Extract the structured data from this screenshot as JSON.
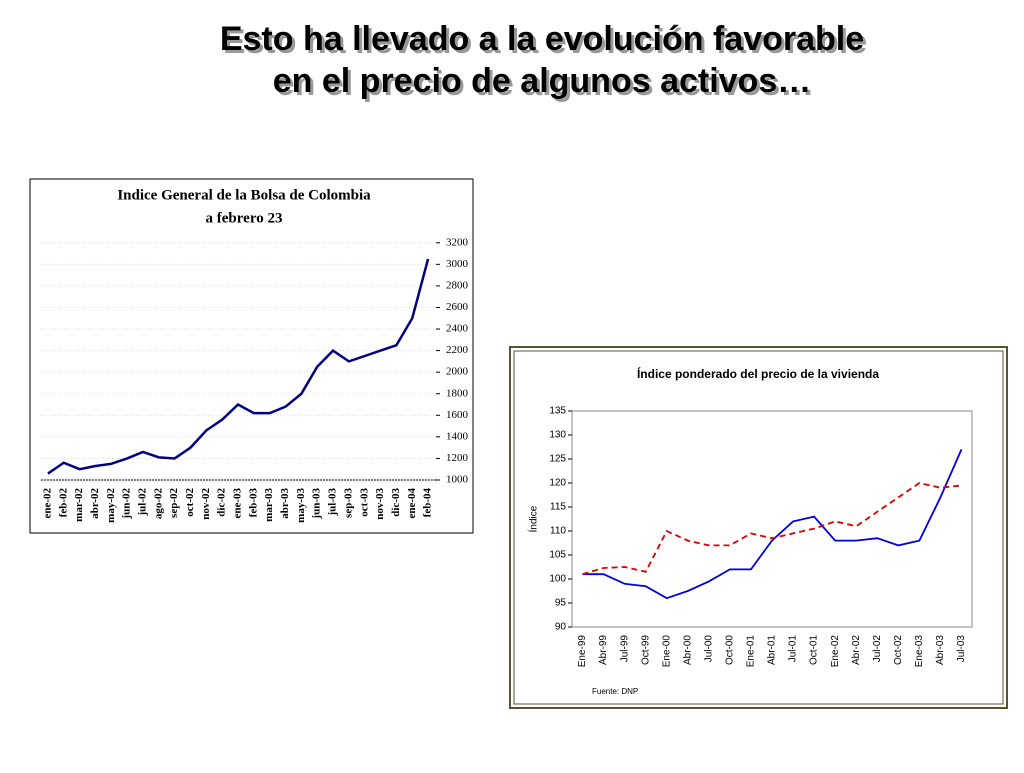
{
  "title": [
    "Esto ha llevado a la evolución favorable",
    "en el precio de algunos activos…"
  ],
  "chart_data": [
    {
      "type": "line",
      "title": "Indice General de la Bolsa de Colombia",
      "subtitle": "a febrero 23",
      "categories": [
        "ene-02",
        "feb-02",
        "mar-02",
        "abr-02",
        "may-02",
        "jun-02",
        "jul-02",
        "ago-02",
        "sep-02",
        "oct-02",
        "nov-02",
        "dic-02",
        "ene-03",
        "feb-03",
        "mar-03",
        "abr-03",
        "may-03",
        "jun-03",
        "jul-03",
        "sep-03",
        "oct-03",
        "nov-03",
        "dic-03",
        "ene-04",
        "feb-04"
      ],
      "series": [
        {
          "color": "#000080",
          "values": [
            1060,
            1160,
            1100,
            1130,
            1150,
            1200,
            1260,
            1210,
            1200,
            1300,
            1460,
            1560,
            1700,
            1620,
            1620,
            1680,
            1800,
            2050,
            2200,
            2100,
            2150,
            2200,
            2250,
            2500,
            3050
          ]
        }
      ],
      "ylim": [
        1000,
        3300
      ],
      "yticks": [
        1000,
        1200,
        1400,
        1600,
        1800,
        2000,
        2200,
        2400,
        2600,
        2800,
        3000,
        3200
      ],
      "grid": true,
      "y_axis_side": "right"
    },
    {
      "type": "line",
      "title": "Índice ponderado del precio de la vivienda",
      "y_label": "Índice",
      "source": "Fuente: DNP",
      "categories": [
        "Ene-99",
        "Abr-99",
        "Jul-99",
        "Oct-99",
        "Ene-00",
        "Abr-00",
        "Jul-00",
        "Oct-00",
        "Ene-01",
        "Abr-01",
        "Jul-01",
        "Oct-01",
        "Ene-02",
        "Abr-02",
        "Jul-02",
        "Oct-02",
        "Ene-03",
        "Abr-03",
        "Jul-03"
      ],
      "series": [
        {
          "color": "#0000dd",
          "dashed": false,
          "values": [
            101,
            101,
            99,
            98.5,
            96,
            97.5,
            99.5,
            102,
            102,
            108,
            112,
            113,
            108,
            108,
            108.5,
            107,
            108,
            117,
            127
          ]
        },
        {
          "color": "#dd0000",
          "dashed": true,
          "values": [
            101,
            102.3,
            102.5,
            101.5,
            110,
            108,
            107,
            107,
            109.5,
            108.5,
            109.5,
            110.5,
            112,
            111,
            114,
            117,
            120,
            119,
            119.5
          ]
        }
      ],
      "ylim": [
        90,
        135
      ],
      "yticks": [
        90,
        95,
        100,
        105,
        110,
        115,
        120,
        125,
        130,
        135
      ],
      "grid": false,
      "y_axis_side": "left"
    }
  ]
}
